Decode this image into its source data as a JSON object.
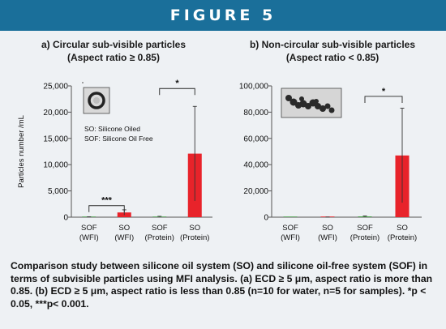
{
  "banner": {
    "title": "FIGURE 5"
  },
  "colors": {
    "banner": "#1a6f9a",
    "bar_so": "#e8232a",
    "bar_sof": "#4aa04a",
    "background": "#eef1f4"
  },
  "chart_data": [
    {
      "type": "bar",
      "title_line1": "a) Circular sub-visible particles",
      "title_line2": "(Aspect ratio ≥ 0.85)",
      "ylabel": "Particles number /mL",
      "ylim": [
        0,
        25000
      ],
      "yticks": [
        0,
        5000,
        10000,
        15000,
        20000,
        25000
      ],
      "ytick_labels": [
        "0",
        "5,000",
        "10,000",
        "15,000",
        "20,000",
        "25,000"
      ],
      "categories": [
        {
          "line1": "SOF",
          "line2": "(WFI)"
        },
        {
          "line1": "SO",
          "line2": "(WFI)"
        },
        {
          "line1": "SOF",
          "line2": "(Protein)"
        },
        {
          "line1": "SO",
          "line2": "(Protein)"
        }
      ],
      "values": [
        50,
        900,
        100,
        12100
      ],
      "errors": [
        20,
        500,
        60,
        9000
      ],
      "bar_colors": [
        "#4aa04a",
        "#e8232a",
        "#4aa04a",
        "#e8232a"
      ],
      "significance": [
        {
          "from": 0,
          "to": 1,
          "label": "***",
          "y": 2200
        },
        {
          "from": 2,
          "to": 3,
          "label": "*",
          "y": 24500
        }
      ],
      "legend": [
        "SO: Silicone Oiled",
        "SOF: Silicone Oil Free"
      ],
      "inset_image": "circular-particle-image"
    },
    {
      "type": "bar",
      "title_line1": "b) Non-circular sub-visible particles",
      "title_line2": "(Aspect ratio < 0.85)",
      "ylabel": "",
      "ylim": [
        0,
        100000
      ],
      "yticks": [
        0,
        20000,
        40000,
        60000,
        80000,
        100000
      ],
      "ytick_labels": [
        "0",
        "20,000",
        "40,000",
        "60,000",
        "80,000",
        "100,000"
      ],
      "categories": [
        {
          "line1": "SOF",
          "line2": "(WFI)"
        },
        {
          "line1": "SO",
          "line2": "(WFI)"
        },
        {
          "line1": "SOF",
          "line2": "(Protein)"
        },
        {
          "line1": "SO",
          "line2": "(Protein)"
        }
      ],
      "values": [
        0,
        50,
        600,
        47000
      ],
      "errors": [
        0,
        30,
        300,
        36000
      ],
      "bar_colors": [
        "#4aa04a",
        "#e8232a",
        "#4aa04a",
        "#e8232a"
      ],
      "significance": [
        {
          "from": 2,
          "to": 3,
          "label": "*",
          "y": 92000
        }
      ],
      "inset_image": "noncircular-particle-image"
    }
  ],
  "caption": "Comparison study between silicone oil system (SO) and silicone oil-free system (SOF) in terms of subvisible particles using MFI analysis. (a) ECD ≥ 5 μm, aspect ratio is more than 0.85. (b) ECD ≥ 5 μm, aspect ratio is less than 0.85 (n=10 for water, n=5 for samples). *p < 0.05, ***p< 0.001."
}
